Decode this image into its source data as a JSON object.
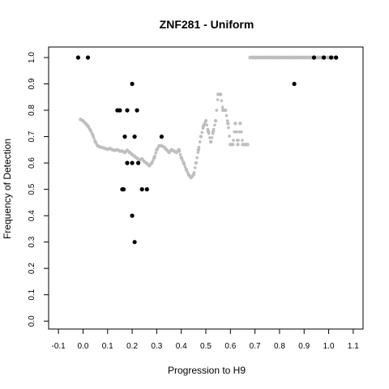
{
  "chart_data": {
    "type": "scatter",
    "title": "ZNF281 - Uniform",
    "xlabel": "Progression to H9",
    "ylabel": "Frequency of Detection",
    "xlim": [
      -0.14,
      1.14
    ],
    "ylim": [
      -0.03,
      1.04
    ],
    "xticks": [
      "-0.1",
      "0.0",
      "0.1",
      "0.2",
      "0.3",
      "0.4",
      "0.5",
      "0.6",
      "0.7",
      "0.8",
      "0.9",
      "1.0",
      "1.1"
    ],
    "yticks": [
      "0.0",
      "0.1",
      "0.2",
      "0.3",
      "0.4",
      "0.5",
      "0.6",
      "0.7",
      "0.8",
      "0.9",
      "1.0"
    ],
    "grid": false,
    "colors": {
      "observed": "#000000",
      "smoothed": "#bebebe"
    },
    "series": [
      {
        "style": "gray smoothed points",
        "points": [
          [
            -0.01,
            0.765
          ],
          [
            0.0,
            0.76
          ],
          [
            0.01,
            0.75
          ],
          [
            0.02,
            0.74
          ],
          [
            0.03,
            0.725
          ],
          [
            0.04,
            0.705
          ],
          [
            0.05,
            0.68
          ],
          [
            0.06,
            0.665
          ],
          [
            0.07,
            0.66
          ],
          [
            0.08,
            0.658
          ],
          [
            0.09,
            0.655
          ],
          [
            0.1,
            0.652
          ],
          [
            0.11,
            0.655
          ],
          [
            0.12,
            0.65
          ],
          [
            0.13,
            0.648
          ],
          [
            0.14,
            0.65
          ],
          [
            0.15,
            0.645
          ],
          [
            0.16,
            0.645
          ],
          [
            0.17,
            0.64
          ],
          [
            0.18,
            0.648
          ],
          [
            0.19,
            0.64
          ],
          [
            0.2,
            0.632
          ],
          [
            0.21,
            0.625
          ],
          [
            0.22,
            0.618
          ],
          [
            0.23,
            0.612
          ],
          [
            0.24,
            0.615
          ],
          [
            0.25,
            0.605
          ],
          [
            0.26,
            0.598
          ],
          [
            0.27,
            0.59
          ],
          [
            0.28,
            0.6
          ],
          [
            0.29,
            0.62
          ],
          [
            0.3,
            0.65
          ],
          [
            0.31,
            0.665
          ],
          [
            0.32,
            0.665
          ],
          [
            0.33,
            0.66
          ],
          [
            0.34,
            0.65
          ],
          [
            0.35,
            0.64
          ],
          [
            0.36,
            0.65
          ],
          [
            0.37,
            0.645
          ],
          [
            0.38,
            0.64
          ],
          [
            0.39,
            0.65
          ],
          [
            0.4,
            0.62
          ],
          [
            0.41,
            0.6
          ],
          [
            0.42,
            0.575
          ],
          [
            0.43,
            0.555
          ],
          [
            0.44,
            0.545
          ],
          [
            0.45,
            0.555
          ],
          [
            0.46,
            0.6
          ],
          [
            0.47,
            0.65
          ],
          [
            0.48,
            0.7
          ],
          [
            0.49,
            0.74
          ],
          [
            0.5,
            0.76
          ],
          [
            0.51,
            0.72
          ],
          [
            0.52,
            0.68
          ],
          [
            0.53,
            0.72
          ],
          [
            0.54,
            0.76
          ],
          [
            0.55,
            0.86
          ],
          [
            0.56,
            0.86
          ],
          [
            0.57,
            0.8
          ],
          [
            0.58,
            0.8
          ],
          [
            0.59,
            0.75
          ],
          [
            0.6,
            0.67
          ],
          [
            0.61,
            0.67
          ],
          [
            0.62,
            0.75
          ],
          [
            0.63,
            0.67
          ],
          [
            0.64,
            0.75
          ],
          [
            0.65,
            0.67
          ],
          [
            0.66,
            0.67
          ],
          [
            0.67,
            0.67
          ],
          [
            0.68,
            1.0
          ],
          [
            0.7,
            1.0
          ],
          [
            0.72,
            1.0
          ],
          [
            0.74,
            1.0
          ],
          [
            0.76,
            1.0
          ],
          [
            0.78,
            1.0
          ],
          [
            0.8,
            1.0
          ],
          [
            0.82,
            1.0
          ],
          [
            0.84,
            1.0
          ],
          [
            0.86,
            1.0
          ],
          [
            0.88,
            1.0
          ],
          [
            0.9,
            1.0
          ],
          [
            0.92,
            1.0
          ],
          [
            0.94,
            1.0
          ],
          [
            0.96,
            1.0
          ],
          [
            0.98,
            1.0
          ],
          [
            1.0,
            1.0
          ],
          [
            1.02,
            1.0
          ]
        ]
      },
      {
        "style": "black observed points",
        "points": [
          [
            -0.02,
            1.0
          ],
          [
            0.02,
            1.0
          ],
          [
            0.94,
            1.0
          ],
          [
            0.98,
            1.0
          ],
          [
            1.01,
            1.0
          ],
          [
            1.03,
            1.0
          ],
          [
            0.2,
            0.9
          ],
          [
            0.86,
            0.9
          ],
          [
            0.14,
            0.8
          ],
          [
            0.15,
            0.8
          ],
          [
            0.18,
            0.8
          ],
          [
            0.22,
            0.8
          ],
          [
            0.17,
            0.7
          ],
          [
            0.21,
            0.7
          ],
          [
            0.32,
            0.7
          ],
          [
            0.18,
            0.6
          ],
          [
            0.2,
            0.6
          ],
          [
            0.225,
            0.6
          ],
          [
            0.16,
            0.5
          ],
          [
            0.165,
            0.5
          ],
          [
            0.24,
            0.5
          ],
          [
            0.26,
            0.5
          ],
          [
            0.2,
            0.4
          ],
          [
            0.21,
            0.3
          ]
        ]
      }
    ]
  }
}
